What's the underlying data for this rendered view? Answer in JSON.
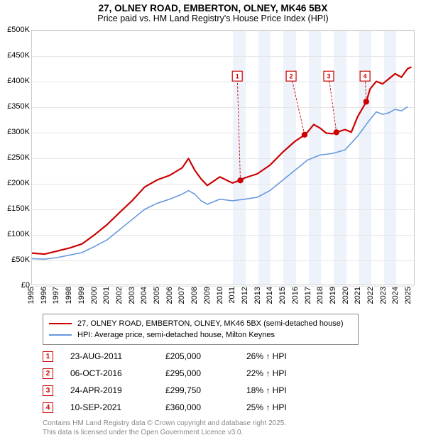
{
  "title1": "27, OLNEY ROAD, EMBERTON, OLNEY, MK46 5BX",
  "title2": "Price paid vs. HM Land Registry's House Price Index (HPI)",
  "chart": {
    "type": "line",
    "background_color": "#ffffff",
    "grid_color": "#e6e6e6",
    "band_color": "#eef3fb",
    "xlim": [
      1995,
      2025.5
    ],
    "ylim": [
      0,
      500000
    ],
    "ytick_step": 50000,
    "yticks": [
      "£0",
      "£50K",
      "£100K",
      "£150K",
      "£200K",
      "£250K",
      "£300K",
      "£350K",
      "£400K",
      "£450K",
      "£500K"
    ],
    "xticks": [
      1995,
      1996,
      1997,
      1998,
      1999,
      2000,
      2001,
      2002,
      2003,
      2004,
      2005,
      2006,
      2007,
      2008,
      2009,
      2010,
      2011,
      2012,
      2013,
      2014,
      2015,
      2016,
      2017,
      2018,
      2019,
      2020,
      2021,
      2022,
      2023,
      2024,
      2025
    ],
    "label_fontsize": 11,
    "bands": [
      [
        2011,
        2012
      ],
      [
        2013,
        2014
      ],
      [
        2015,
        2016
      ],
      [
        2017,
        2018
      ],
      [
        2019,
        2020
      ],
      [
        2021,
        2022
      ],
      [
        2023,
        2024
      ]
    ],
    "series": [
      {
        "name": "red",
        "color": "#cc0000",
        "width": 2.2,
        "points": [
          [
            1995,
            62000
          ],
          [
            1996,
            60000
          ],
          [
            1997,
            66000
          ],
          [
            1998,
            72000
          ],
          [
            1999,
            80000
          ],
          [
            2000,
            98000
          ],
          [
            2001,
            118000
          ],
          [
            2002,
            142000
          ],
          [
            2003,
            165000
          ],
          [
            2004,
            192000
          ],
          [
            2005,
            206000
          ],
          [
            2006,
            215000
          ],
          [
            2007,
            230000
          ],
          [
            2007.5,
            248000
          ],
          [
            2008,
            225000
          ],
          [
            2008.5,
            208000
          ],
          [
            2009,
            195000
          ],
          [
            2010,
            212000
          ],
          [
            2011,
            200000
          ],
          [
            2011.6,
            205000
          ],
          [
            2012,
            210000
          ],
          [
            2013,
            218000
          ],
          [
            2014,
            235000
          ],
          [
            2015,
            260000
          ],
          [
            2016,
            282000
          ],
          [
            2016.8,
            295000
          ],
          [
            2017,
            300000
          ],
          [
            2017.5,
            315000
          ],
          [
            2018,
            308000
          ],
          [
            2018.5,
            298000
          ],
          [
            2019,
            297000
          ],
          [
            2019.3,
            299750
          ],
          [
            2020,
            305000
          ],
          [
            2020.5,
            300000
          ],
          [
            2021,
            330000
          ],
          [
            2021.7,
            360000
          ],
          [
            2022,
            385000
          ],
          [
            2022.5,
            400000
          ],
          [
            2023,
            395000
          ],
          [
            2023.5,
            405000
          ],
          [
            2024,
            415000
          ],
          [
            2024.5,
            408000
          ],
          [
            2025,
            425000
          ],
          [
            2025.3,
            428000
          ]
        ]
      },
      {
        "name": "blue",
        "color": "#6699e0",
        "width": 1.6,
        "points": [
          [
            1995,
            51000
          ],
          [
            1996,
            50000
          ],
          [
            1997,
            53000
          ],
          [
            1998,
            58000
          ],
          [
            1999,
            63000
          ],
          [
            2000,
            75000
          ],
          [
            2001,
            88000
          ],
          [
            2002,
            108000
          ],
          [
            2003,
            128000
          ],
          [
            2004,
            148000
          ],
          [
            2005,
            160000
          ],
          [
            2006,
            168000
          ],
          [
            2007,
            178000
          ],
          [
            2007.5,
            185000
          ],
          [
            2008,
            178000
          ],
          [
            2008.5,
            165000
          ],
          [
            2009,
            158000
          ],
          [
            2010,
            168000
          ],
          [
            2011,
            165000
          ],
          [
            2012,
            168000
          ],
          [
            2013,
            172000
          ],
          [
            2014,
            185000
          ],
          [
            2015,
            205000
          ],
          [
            2016,
            225000
          ],
          [
            2017,
            245000
          ],
          [
            2018,
            255000
          ],
          [
            2019,
            258000
          ],
          [
            2020,
            265000
          ],
          [
            2021,
            292000
          ],
          [
            2022,
            325000
          ],
          [
            2022.5,
            340000
          ],
          [
            2023,
            335000
          ],
          [
            2023.5,
            338000
          ],
          [
            2024,
            345000
          ],
          [
            2024.5,
            342000
          ],
          [
            2025,
            350000
          ]
        ]
      }
    ],
    "markers": [
      {
        "n": "1",
        "x": 2011.64,
        "y": 205000,
        "lx": 2011.0,
        "ly": 420000
      },
      {
        "n": "2",
        "x": 2016.77,
        "y": 295000,
        "lx": 2015.3,
        "ly": 420000
      },
      {
        "n": "3",
        "x": 2019.31,
        "y": 299750,
        "lx": 2018.3,
        "ly": 420000
      },
      {
        "n": "4",
        "x": 2021.69,
        "y": 360000,
        "lx": 2021.2,
        "ly": 420000
      }
    ]
  },
  "legend": {
    "items": [
      {
        "color": "#cc0000",
        "width": 2.5,
        "label": "27, OLNEY ROAD, EMBERTON, OLNEY, MK46 5BX (semi-detached house)"
      },
      {
        "color": "#6699e0",
        "width": 1.8,
        "label": "HPI: Average price, semi-detached house, Milton Keynes"
      }
    ]
  },
  "sales": [
    {
      "n": "1",
      "date": "23-AUG-2011",
      "price": "£205,000",
      "diff": "26% ↑ HPI"
    },
    {
      "n": "2",
      "date": "06-OCT-2016",
      "price": "£295,000",
      "diff": "22% ↑ HPI"
    },
    {
      "n": "3",
      "date": "24-APR-2019",
      "price": "£299,750",
      "diff": "18% ↑ HPI"
    },
    {
      "n": "4",
      "date": "10-SEP-2021",
      "price": "£360,000",
      "diff": "25% ↑ HPI"
    }
  ],
  "footer1": "Contains HM Land Registry data © Crown copyright and database right 2025.",
  "footer2": "This data is licensed under the Open Government Licence v3.0."
}
